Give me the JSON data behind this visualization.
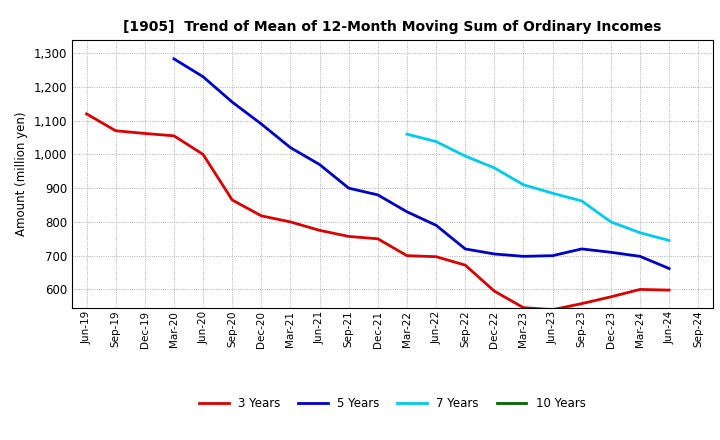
{
  "title": "[1905]  Trend of Mean of 12-Month Moving Sum of Ordinary Incomes",
  "ylabel": "Amount (million yen)",
  "background_color": "#ffffff",
  "grid_color": "#999999",
  "x_labels": [
    "Jun-19",
    "Sep-19",
    "Dec-19",
    "Mar-20",
    "Jun-20",
    "Sep-20",
    "Dec-20",
    "Mar-21",
    "Jun-21",
    "Sep-21",
    "Dec-21",
    "Mar-22",
    "Jun-22",
    "Sep-22",
    "Dec-22",
    "Mar-23",
    "Jun-23",
    "Sep-23",
    "Dec-23",
    "Mar-24",
    "Jun-24",
    "Sep-24"
  ],
  "ylim": [
    545,
    1340
  ],
  "yticks": [
    600,
    700,
    800,
    900,
    1000,
    1100,
    1200,
    1300
  ],
  "series": [
    {
      "label": "3 Years",
      "color": "#dd0000",
      "data_x": [
        "Jun-19",
        "Sep-19",
        "Dec-19",
        "Mar-20",
        "Jun-20",
        "Sep-20",
        "Dec-20",
        "Mar-21",
        "Jun-21",
        "Sep-21",
        "Dec-21",
        "Mar-22",
        "Jun-22",
        "Sep-22",
        "Dec-22",
        "Mar-23",
        "Jun-23",
        "Sep-23",
        "Dec-23",
        "Mar-24",
        "Jun-24"
      ],
      "data_y": [
        1120,
        1070,
        1062,
        1055,
        1000,
        865,
        818,
        800,
        775,
        757,
        750,
        700,
        697,
        672,
        595,
        546,
        540,
        558,
        578,
        600,
        598
      ]
    },
    {
      "label": "5 Years",
      "color": "#0000cc",
      "data_x": [
        "Mar-20",
        "Jun-20",
        "Sep-20",
        "Dec-20",
        "Mar-21",
        "Jun-21",
        "Sep-21",
        "Dec-21",
        "Mar-22",
        "Jun-22",
        "Sep-22",
        "Dec-22",
        "Mar-23",
        "Jun-23",
        "Sep-23",
        "Dec-23",
        "Mar-24",
        "Jun-24"
      ],
      "data_y": [
        1283,
        1230,
        1155,
        1090,
        1020,
        970,
        900,
        880,
        830,
        790,
        720,
        705,
        698,
        700,
        720,
        710,
        698,
        662
      ]
    },
    {
      "label": "7 Years",
      "color": "#00ccee",
      "data_x": [
        "Mar-22",
        "Jun-22",
        "Sep-22",
        "Dec-22",
        "Mar-23",
        "Jun-23",
        "Sep-23",
        "Dec-23",
        "Mar-24",
        "Jun-24"
      ],
      "data_y": [
        1060,
        1038,
        995,
        960,
        910,
        885,
        862,
        800,
        768,
        745
      ]
    },
    {
      "label": "10 Years",
      "color": "#006600",
      "data_x": [],
      "data_y": []
    }
  ]
}
